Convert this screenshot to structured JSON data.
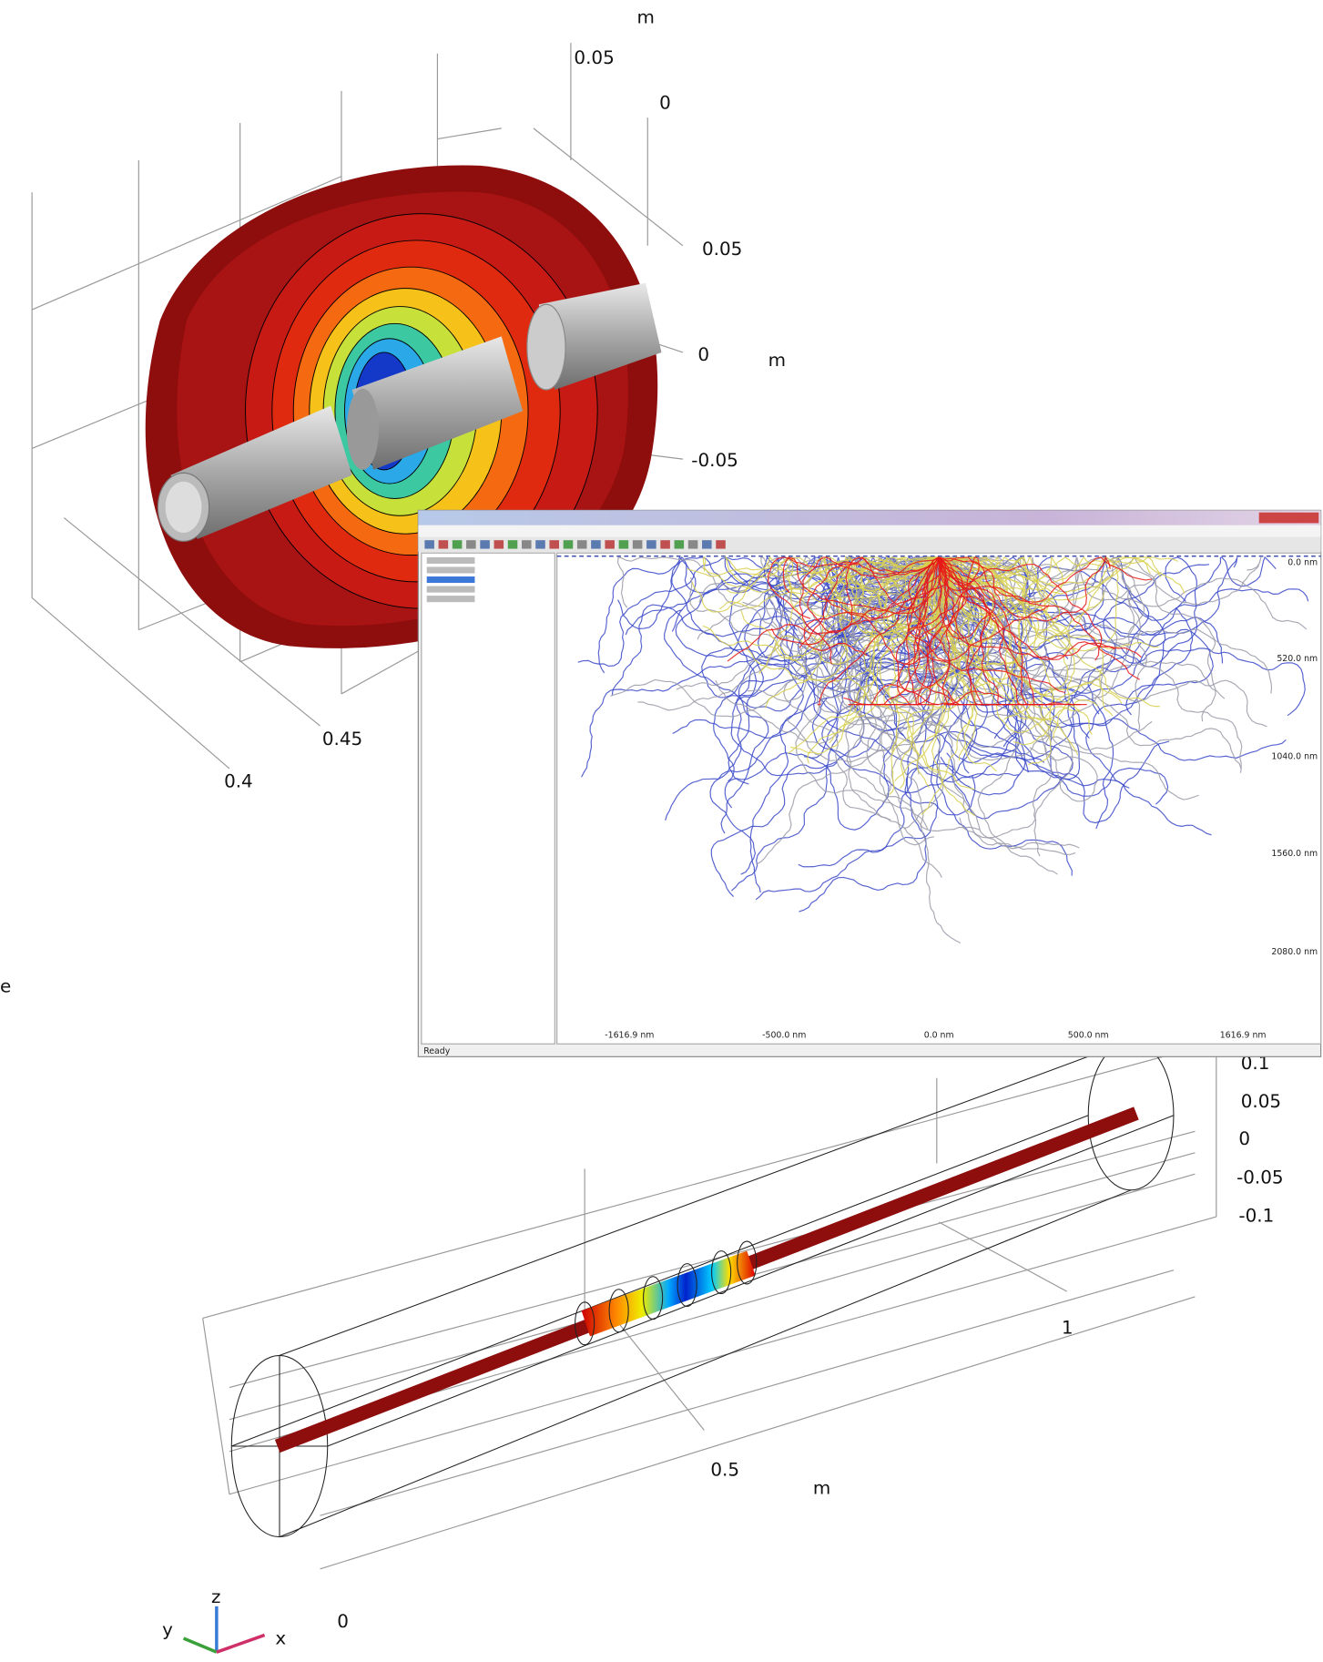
{
  "top_plot": {
    "labels": [
      "m",
      "0.05",
      "0",
      "0.05",
      "0",
      "m",
      "-0.05",
      "0.45",
      "0.4"
    ]
  },
  "side_fragment": "e",
  "window": {
    "y_labels": [
      "0.0 nm",
      "520.0 nm",
      "1040.0 nm",
      "1560.0 nm",
      "2080.0 nm"
    ],
    "x_labels": [
      "-1616.9 nm",
      "-500.0 nm",
      "0.0 nm",
      "500.0 nm",
      "1616.9 nm"
    ],
    "status": "Ready"
  },
  "bottom_plot": {
    "labels": [
      "0.1",
      "0.05",
      "0",
      "-0.05",
      "-0.1",
      "1",
      "0.5",
      "m",
      "0"
    ]
  },
  "triad": {
    "z": "z",
    "y": "y",
    "x": "x"
  }
}
